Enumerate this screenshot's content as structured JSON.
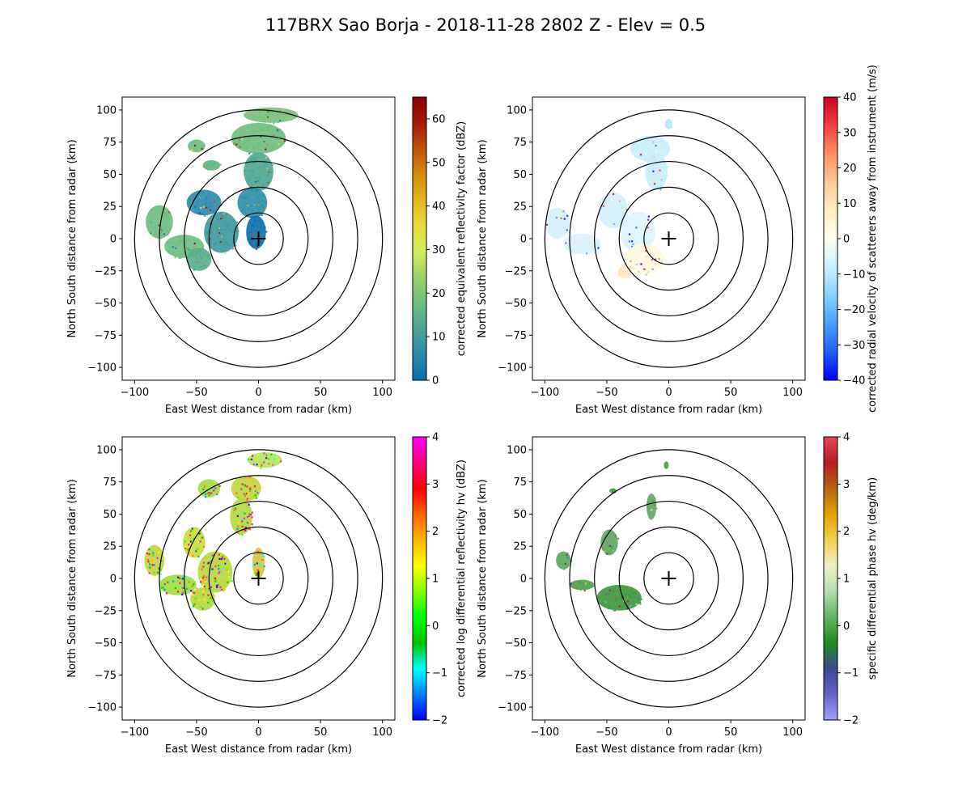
{
  "figure": {
    "title": "117BRX Sao Borja - 2018-11-28 2802 Z -  Elev = 0.5"
  },
  "chart_data": [
    {
      "type": "heatmap",
      "panel": "top-left",
      "xlabel": "East West distance from radar (km)",
      "ylabel": "North South distance from radar (km)",
      "xlim": [
        -110,
        110
      ],
      "ylim": [
        -110,
        110
      ],
      "x_ticks": [
        "−100",
        "−50",
        "0",
        "50",
        "100"
      ],
      "y_ticks": [
        "−100",
        "−75",
        "−50",
        "−25",
        "0",
        "25",
        "50",
        "75",
        "100"
      ],
      "range_rings_km": [
        20,
        40,
        60,
        80,
        100
      ],
      "radar_location": [
        0,
        0
      ],
      "colorbar": {
        "label": "corrected equivalent reflectivity factor (dBZ)",
        "vmin": 0,
        "vmax": 65,
        "ticks": [
          "0",
          "10",
          "20",
          "30",
          "40",
          "50",
          "60"
        ],
        "tick_values": [
          0,
          10,
          20,
          30,
          40,
          50,
          60
        ],
        "colors": [
          "#0a6eaa",
          "#2a8aaa",
          "#4aa696",
          "#6ebe82",
          "#9ad266",
          "#d2ee5a",
          "#e8dc3c",
          "#e6b41e",
          "#d68a0e",
          "#c25208",
          "#a81808",
          "#8a0000"
        ]
      },
      "echo_regions": [
        {
          "x": 10,
          "y": 96,
          "rx": 22,
          "ry": 6,
          "color": "#78c07a"
        },
        {
          "x": 0,
          "y": 78,
          "rx": 22,
          "ry": 12,
          "color": "#6ebc7c"
        },
        {
          "x": -50,
          "y": 72,
          "rx": 7,
          "ry": 5,
          "color": "#6ebc7c"
        },
        {
          "x": -38,
          "y": 57,
          "rx": 7,
          "ry": 4,
          "color": "#5eb27e"
        },
        {
          "x": 0,
          "y": 52,
          "rx": 12,
          "ry": 15,
          "color": "#4aa690"
        },
        {
          "x": -5,
          "y": 28,
          "rx": 12,
          "ry": 12,
          "color": "#2a8eaa"
        },
        {
          "x": -44,
          "y": 28,
          "rx": 14,
          "ry": 10,
          "color": "#2a8aaa"
        },
        {
          "x": -30,
          "y": 5,
          "rx": 14,
          "ry": 16,
          "color": "#3a98a0"
        },
        {
          "x": -80,
          "y": 13,
          "rx": 11,
          "ry": 13,
          "color": "#6cbc7e"
        },
        {
          "x": -60,
          "y": -6,
          "rx": 16,
          "ry": 9,
          "color": "#6cbc7e"
        },
        {
          "x": -48,
          "y": -16,
          "rx": 10,
          "ry": 9,
          "color": "#56ae88"
        },
        {
          "x": -2,
          "y": 5,
          "rx": 8,
          "ry": 13,
          "color": "#0a6eaa"
        }
      ]
    },
    {
      "type": "heatmap",
      "panel": "top-right",
      "xlabel": "East West distance from radar (km)",
      "ylabel": "North South distance from radar (km)",
      "xlim": [
        -110,
        110
      ],
      "ylim": [
        -110,
        110
      ],
      "x_ticks": [
        "−100",
        "−50",
        "0",
        "50",
        "100"
      ],
      "y_ticks": [
        "−100",
        "−75",
        "−50",
        "−25",
        "0",
        "25",
        "50",
        "75",
        "100"
      ],
      "range_rings_km": [
        20,
        40,
        60,
        80,
        100
      ],
      "radar_location": [
        0,
        0
      ],
      "colorbar": {
        "label": "corrected radial velocity of scatterers away from instrument (m/s)",
        "vmin": -40,
        "vmax": 40,
        "ticks": [
          "−40",
          "−30",
          "−20",
          "−10",
          "0",
          "10",
          "20",
          "30",
          "40"
        ],
        "tick_values": [
          -40,
          -30,
          -20,
          -10,
          0,
          10,
          20,
          30,
          40
        ],
        "colors": [
          "#0000ff",
          "#2060ff",
          "#4aa0ff",
          "#88d2ff",
          "#c8f0ff",
          "#fffff0",
          "#fff0c0",
          "#ffc896",
          "#ff9060",
          "#f04040",
          "#d00020"
        ]
      },
      "echo_regions": [
        {
          "x": 0,
          "y": 89,
          "rx": 3,
          "ry": 4,
          "color": "#b4e8fc"
        },
        {
          "x": -15,
          "y": 70,
          "rx": 16,
          "ry": 10,
          "color": "#c6eefc"
        },
        {
          "x": -10,
          "y": 52,
          "rx": 9,
          "ry": 14,
          "color": "#c6eefc"
        },
        {
          "x": -45,
          "y": 22,
          "rx": 12,
          "ry": 14,
          "color": "#d2f2fc"
        },
        {
          "x": -90,
          "y": 12,
          "rx": 10,
          "ry": 12,
          "color": "#d2f2fc"
        },
        {
          "x": -70,
          "y": -4,
          "rx": 15,
          "ry": 8,
          "color": "#d8f4fc"
        },
        {
          "x": -25,
          "y": 5,
          "rx": 14,
          "ry": 16,
          "color": "#dcf4fc"
        },
        {
          "x": -20,
          "y": -16,
          "rx": 16,
          "ry": 12,
          "color": "#fff8dc"
        },
        {
          "x": -36,
          "y": -26,
          "rx": 5,
          "ry": 5,
          "color": "#ffe8c0"
        }
      ]
    },
    {
      "type": "heatmap",
      "panel": "bottom-left",
      "xlabel": "East West distance from radar (km)",
      "ylabel": "North South distance from radar (km)",
      "xlim": [
        -110,
        110
      ],
      "ylim": [
        -110,
        110
      ],
      "x_ticks": [
        "−100",
        "−50",
        "0",
        "50",
        "100"
      ],
      "y_ticks": [
        "−100",
        "−75",
        "−50",
        "−25",
        "0",
        "25",
        "50",
        "75",
        "100"
      ],
      "range_rings_km": [
        20,
        40,
        60,
        80,
        100
      ],
      "radar_location": [
        0,
        0
      ],
      "colorbar": {
        "label": "corrected log differential reflectivity hv (dBZ)",
        "vmin": -2,
        "vmax": 4,
        "ticks": [
          "−2",
          "−1",
          "0",
          "1",
          "2",
          "3",
          "4"
        ],
        "tick_values": [
          -2,
          -1,
          0,
          1,
          2,
          3,
          4
        ],
        "colors": [
          "#0000ff",
          "#0080ff",
          "#00ffff",
          "#00c000",
          "#00ff00",
          "#80ff00",
          "#ffff00",
          "#ffb400",
          "#ff6400",
          "#ff0000",
          "#ff0080",
          "#ff00ff"
        ]
      },
      "echo_regions": [
        {
          "x": 5,
          "y": 92,
          "rx": 14,
          "ry": 6,
          "color": "#b4e65a"
        },
        {
          "x": -40,
          "y": 70,
          "rx": 9,
          "ry": 7,
          "color": "#9ce040"
        },
        {
          "x": -10,
          "y": 70,
          "rx": 12,
          "ry": 10,
          "color": "#c8d23c"
        },
        {
          "x": -14,
          "y": 48,
          "rx": 9,
          "ry": 14,
          "color": "#b4d83c"
        },
        {
          "x": -52,
          "y": 28,
          "rx": 9,
          "ry": 12,
          "color": "#c8dc3c"
        },
        {
          "x": -35,
          "y": 5,
          "rx": 14,
          "ry": 16,
          "color": "#b4d83c"
        },
        {
          "x": -84,
          "y": 14,
          "rx": 8,
          "ry": 12,
          "color": "#c8d23c"
        },
        {
          "x": -65,
          "y": -5,
          "rx": 15,
          "ry": 8,
          "color": "#9ce040"
        },
        {
          "x": -45,
          "y": -16,
          "rx": 10,
          "ry": 9,
          "color": "#b4d83c"
        },
        {
          "x": 0,
          "y": 12,
          "rx": 5,
          "ry": 12,
          "color": "#d2c83c"
        }
      ]
    },
    {
      "type": "heatmap",
      "panel": "bottom-right",
      "xlabel": "East West distance from radar (km)",
      "ylabel": "North South distance from radar (km)",
      "xlim": [
        -110,
        110
      ],
      "ylim": [
        -110,
        110
      ],
      "x_ticks": [
        "−100",
        "−50",
        "0",
        "50",
        "100"
      ],
      "y_ticks": [
        "−100",
        "−75",
        "−50",
        "−25",
        "0",
        "25",
        "50",
        "75",
        "100"
      ],
      "range_rings_km": [
        20,
        40,
        60,
        80,
        100
      ],
      "radar_location": [
        0,
        0
      ],
      "colorbar": {
        "label": "specific differential phase hv (deg/km)",
        "vmin": -2,
        "vmax": 4,
        "ticks": [
          "−2",
          "−1",
          "0",
          "1",
          "2",
          "3",
          "4"
        ],
        "tick_values": [
          -2,
          -1,
          0,
          1,
          2,
          3,
          4
        ],
        "colors": [
          "#a0a0ff",
          "#6464c8",
          "#3c4690",
          "#1e8c1e",
          "#64b464",
          "#b4dcb4",
          "#f0f0c8",
          "#f0d050",
          "#e6a000",
          "#b46414",
          "#b41e1e",
          "#e64660"
        ]
      },
      "echo_regions": [
        {
          "x": -2,
          "y": 88,
          "rx": 2,
          "ry": 3,
          "color": "#4aa04a"
        },
        {
          "x": -45,
          "y": 68,
          "rx": 3,
          "ry": 2,
          "color": "#3c963c"
        },
        {
          "x": -14,
          "y": 56,
          "rx": 4,
          "ry": 10,
          "color": "#5aaa5a"
        },
        {
          "x": -48,
          "y": 28,
          "rx": 7,
          "ry": 10,
          "color": "#5aaa5a"
        },
        {
          "x": -85,
          "y": 14,
          "rx": 6,
          "ry": 7,
          "color": "#5aaa5a"
        },
        {
          "x": -40,
          "y": -15,
          "rx": 18,
          "ry": 10,
          "color": "#3c963c"
        },
        {
          "x": -70,
          "y": -5,
          "rx": 10,
          "ry": 4,
          "color": "#4aa04a"
        }
      ]
    }
  ]
}
